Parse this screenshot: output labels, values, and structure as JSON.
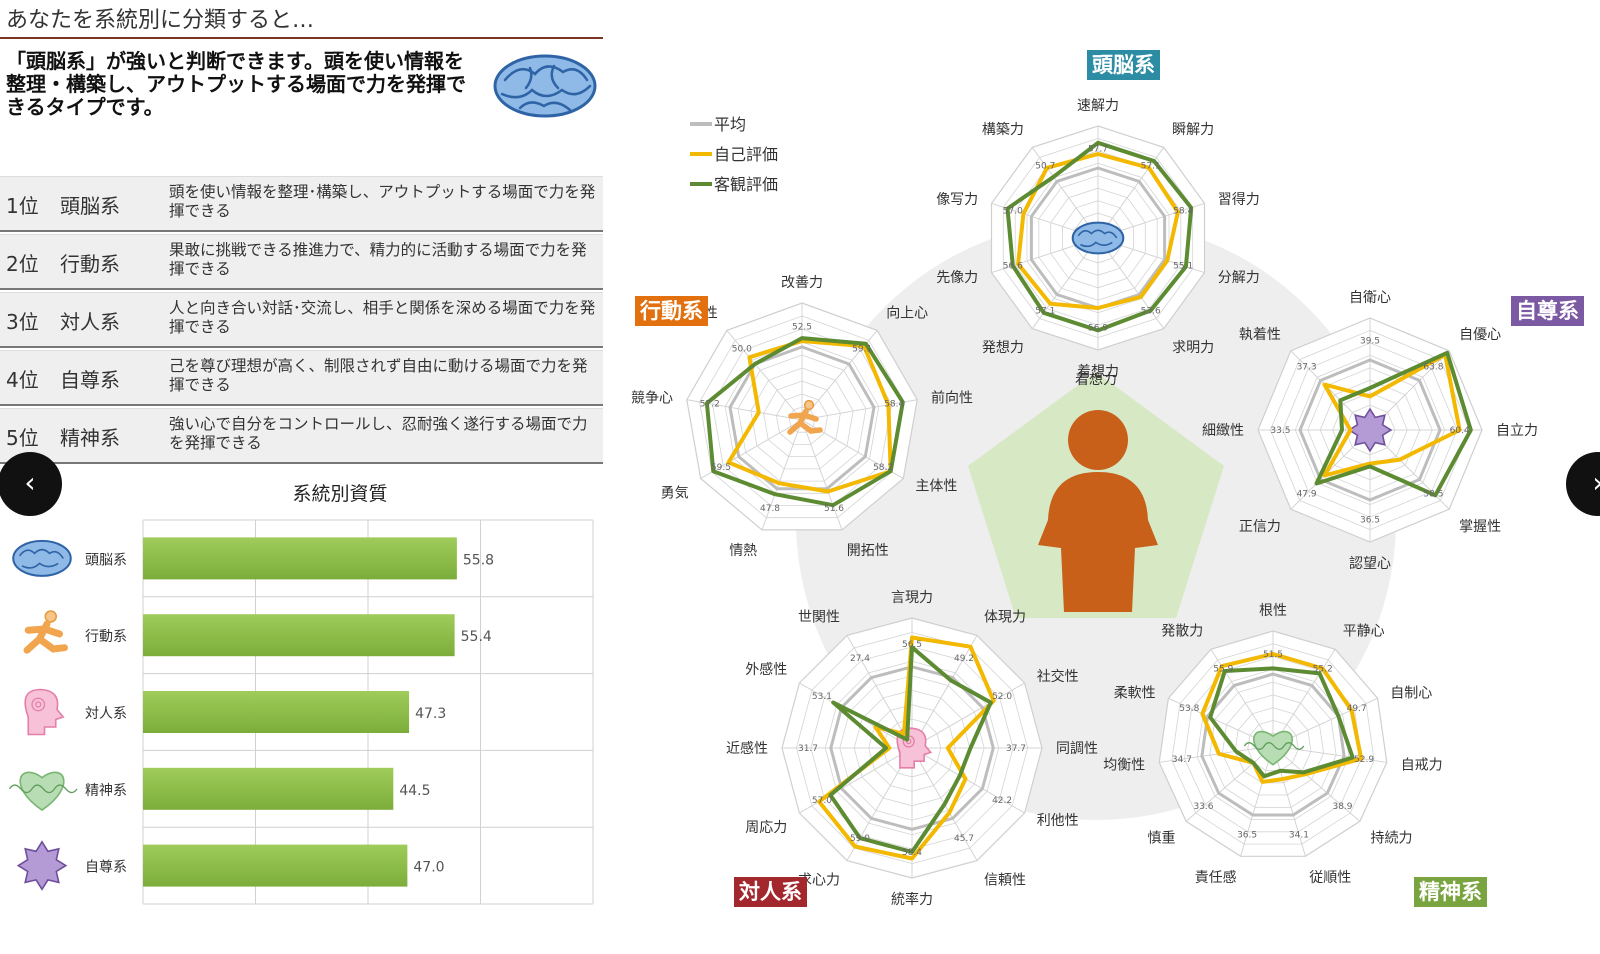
{
  "header": {
    "title": "あなたを系統別に分類すると…",
    "summary": "「頭脳系」が強いと判断できます。頭を使い情報を整理・構築し、アウトプットする場面で力を発揮できるタイプです。"
  },
  "ranking": [
    {
      "rank": "1位",
      "category": "頭脳系",
      "desc": "頭を使い情報を整理･構築し、アウトプットする場面で力を発揮できる"
    },
    {
      "rank": "2位",
      "category": "行動系",
      "desc": "果敢に挑戦できる推進力で、精力的に活動する場面で力を発揮できる"
    },
    {
      "rank": "3位",
      "category": "対人系",
      "desc": "人と向き合い対話･交流し、相手と関係を深める場面で力を発揮できる"
    },
    {
      "rank": "4位",
      "category": "自尊系",
      "desc": "己を尊び理想が高く、制限されず自由に動ける場面で力を発揮できる"
    },
    {
      "rank": "5位",
      "category": "精神系",
      "desc": "強い心で自分をコントロールし、忍耐強く遂行する場面で力を発揮できる"
    }
  ],
  "nav": {
    "prev": "‹",
    "next": "›"
  },
  "colors": {
    "bar": "#7cad3a",
    "average": "#bdbdbd",
    "self": "#f3b800",
    "objective": "#5c8b32",
    "head": "#2b8ca3",
    "action": "#e2700f",
    "people": "#a3282d",
    "self_esteem": "#7b5aa3",
    "mental": "#7aa43f"
  },
  "chart_data": [
    {
      "type": "bar",
      "title": "系統別資質",
      "orientation": "horizontal",
      "categories": [
        "頭脳系",
        "行動系",
        "対人系",
        "精神系",
        "自尊系"
      ],
      "icons": [
        "brain-icon",
        "runner-icon",
        "person-talk-icon",
        "heart-icon",
        "star-badge-icon"
      ],
      "values": [
        55.8,
        55.4,
        47.3,
        44.5,
        47.0
      ],
      "labels": [
        "55.8",
        "55.4",
        "47.3",
        "44.5",
        "47.0"
      ],
      "xlim": [
        0,
        80
      ],
      "grid": true
    },
    {
      "type": "radar",
      "title": "頭脳系",
      "axes": [
        "速解力",
        "瞬解力",
        "習得力",
        "分解力",
        "求明力",
        "着想力",
        "発想力",
        "先像力",
        "像写力",
        "構築力"
      ],
      "value_labels": [
        "57.7",
        "57.1",
        "58.4",
        "55.1",
        "53.6",
        "56.9",
        "57.1",
        "56.6",
        "57.0",
        "50.7"
      ],
      "series": [
        {
          "name": "平均",
          "values": [
            50,
            50,
            50,
            50,
            50,
            50,
            50,
            50,
            50,
            50
          ]
        },
        {
          "name": "自己評価",
          "values": [
            55,
            56,
            55,
            51,
            51,
            50,
            54,
            55,
            53,
            56
          ]
        },
        {
          "name": "客観評価",
          "values": [
            59,
            59,
            60,
            58,
            57,
            58,
            58,
            57,
            59,
            52
          ]
        }
      ]
    },
    {
      "type": "radar",
      "title": "行動系",
      "axes": [
        "改善力",
        "向上心",
        "前向性",
        "主体性",
        "開拓性",
        "情熱",
        "勇気",
        "競争心",
        "身体性"
      ],
      "value_labels": [
        "52.5",
        "59.1",
        "58.4",
        "58.2",
        "51.6",
        "47.8",
        "59.5",
        "57.2",
        "50.0"
      ],
      "series": [
        {
          "name": "平均",
          "values": [
            50,
            50,
            50,
            50,
            50,
            50,
            50,
            50,
            50
          ]
        },
        {
          "name": "自己評価",
          "values": [
            52,
            58,
            55,
            60,
            51,
            48,
            54,
            40,
            53
          ]
        },
        {
          "name": "客観評価",
          "values": [
            53,
            59,
            60,
            60,
            56,
            52,
            60,
            58,
            50
          ]
        }
      ]
    },
    {
      "type": "radar",
      "title": "自尊系",
      "axes": [
        "自衛心",
        "自優心",
        "自立力",
        "掌握性",
        "認望心",
        "正信力",
        "細緻性",
        "執着性"
      ],
      "value_labels": [
        "39.5",
        "63.8",
        "60.4",
        "58.5",
        "36.5",
        "47.9",
        "33.5",
        "37.3"
      ],
      "series": [
        {
          "name": "平均",
          "values": [
            50,
            50,
            50,
            50,
            50,
            50,
            50,
            50
          ]
        },
        {
          "name": "自己評価",
          "values": [
            37,
            63,
            57,
            40,
            37,
            48,
            32,
            48
          ]
        },
        {
          "name": "客観評価",
          "values": [
            40,
            64,
            61,
            58,
            38,
            52,
            35,
            40
          ]
        }
      ]
    },
    {
      "type": "radar",
      "title": "対人系",
      "axes": [
        "言現力",
        "体現力",
        "社交性",
        "同調性",
        "利他性",
        "信頼性",
        "統率力",
        "求心力",
        "周応力",
        "近感性",
        "外感性",
        "世関性"
      ],
      "value_labels": [
        "56.5",
        "49.2",
        "52.0",
        "37.7",
        "42.2",
        "45.7",
        "58.4",
        "59.0",
        "57.0",
        "31.7",
        "53.1",
        "27.4"
      ],
      "series": [
        {
          "name": "平均",
          "values": [
            50,
            50,
            50,
            50,
            50,
            50,
            50,
            50,
            50,
            50,
            50,
            50
          ]
        },
        {
          "name": "自己評価",
          "values": [
            59,
            61,
            54,
            36,
            44,
            48,
            59,
            60,
            58,
            32,
            38,
            30
          ]
        },
        {
          "name": "客観評価",
          "values": [
            56,
            49,
            53,
            43,
            42,
            45,
            57,
            57,
            54,
            33,
            53,
            28
          ]
        }
      ]
    },
    {
      "type": "radar",
      "title": "精神系",
      "axes": [
        "根性",
        "平静心",
        "自制心",
        "自戒力",
        "持続力",
        "従順性",
        "責任感",
        "慎重",
        "均衡性",
        "柔軟性",
        "発散力"
      ],
      "value_labels": [
        "51.5",
        "55.2",
        "49.7",
        "52.9",
        "38.9",
        "34.1",
        "36.5",
        "33.6",
        "34.7",
        "53.8",
        "55.9"
      ],
      "series": [
        {
          "name": "平均",
          "values": [
            50,
            50,
            50,
            50,
            50,
            50,
            50,
            50,
            50,
            50,
            50
          ]
        },
        {
          "name": "自己評価",
          "values": [
            57,
            57,
            55,
            56,
            40,
            37,
            38,
            34,
            44,
            52,
            58
          ]
        },
        {
          "name": "客観評価",
          "values": [
            52,
            55,
            50,
            53,
            39,
            34,
            36,
            34,
            38,
            49,
            56
          ]
        }
      ]
    }
  ],
  "legend": [
    "平均",
    "自己評価",
    "客観評価"
  ],
  "central_label": "着想力"
}
